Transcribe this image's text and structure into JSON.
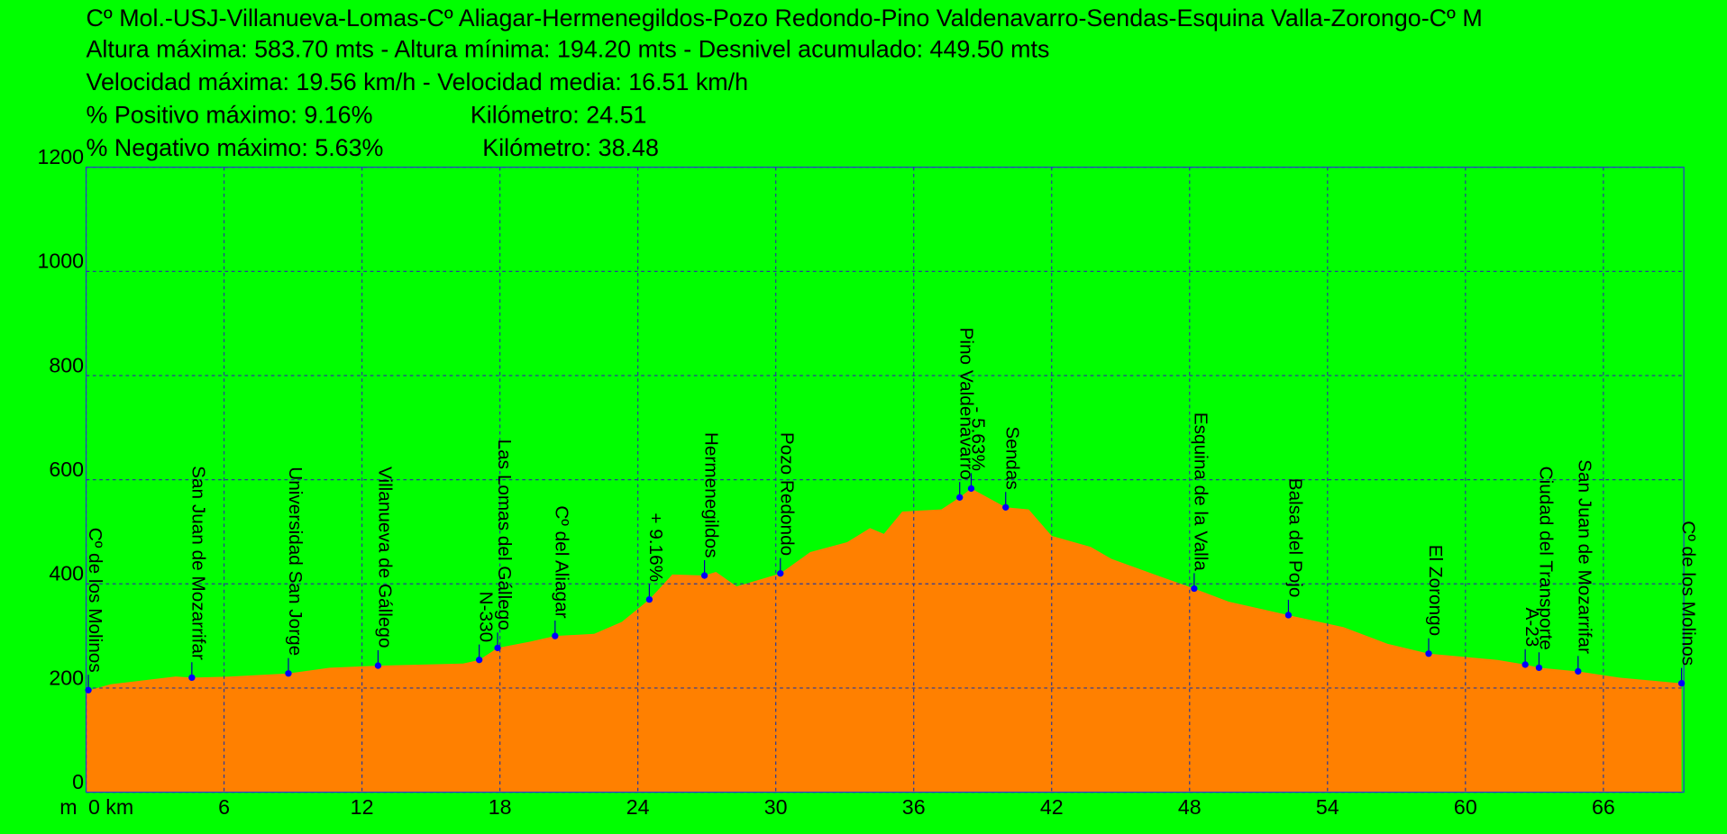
{
  "chart_data": {
    "type": "area",
    "title_lines": [
      "Cº Mol.-USJ-Villanueva-Lomas-Cº Aliagar-Hermenegildos-Pozo Redondo-Pino Valdenavarro-Sendas-Esquina Valla-Zorongo-Cº M",
      "Altura máxima: 583.70 mts - Altura mínima: 194.20 mts - Desnivel acumulado: 449.50 mts",
      "Velocidad máxima: 19.56 km/h - Velocidad media: 16.51 km/h",
      "% Positivo máximo: 9.16%",
      "% Negativo máximo: 5.63%"
    ],
    "km_notes": [
      "Kilómetro: 24.51",
      "Kilómetro: 38.48"
    ],
    "y_unit": "m",
    "x": [
      0,
      1.05,
      3.9,
      4.6,
      6.3,
      8.8,
      10.6,
      12.7,
      16.4,
      17.1,
      17.9,
      19.3,
      20.4,
      22.1,
      23.3,
      24.5,
      25.5,
      26.9,
      27.4,
      28.3,
      30.2,
      31.5,
      33.1,
      34.1,
      34.7,
      35.5,
      37.2,
      38.0,
      38.5,
      40.0,
      41.0,
      42.0,
      43.7,
      44.6,
      46.6,
      48.2,
      49.7,
      52.3,
      54.7,
      56.6,
      58.4,
      61.4,
      62.6,
      63.2,
      64.9,
      66.7,
      69.4
    ],
    "values": [
      194,
      207,
      222,
      220,
      222,
      228,
      239,
      243,
      247,
      254,
      277,
      289,
      300,
      304,
      327,
      370,
      418,
      416,
      423,
      395,
      420,
      461,
      480,
      507,
      496,
      539,
      543,
      566,
      583,
      547,
      543,
      492,
      471,
      448,
      416,
      391,
      366,
      340,
      317,
      285,
      266,
      254,
      245,
      239,
      232,
      220,
      209
    ],
    "color": "#ff8000",
    "xlim": [
      0,
      69.5
    ],
    "ylim": [
      0,
      1200
    ],
    "xticks": [
      {
        "value": 0,
        "label": "0 km"
      },
      6,
      12,
      18,
      24,
      30,
      36,
      42,
      48,
      54,
      60,
      66
    ],
    "yticks": [
      0,
      200,
      400,
      600,
      800,
      1000,
      1200
    ],
    "grid": true,
    "waypoints": {
      "color": "#0000ff",
      "names": [
        "Cº de los Molinos",
        "San Juan de Mozarrifar",
        "Universidad San Jorge",
        "Villanueva de Gállego",
        "N-330",
        "Las Lomas del Gállego",
        "Cº del Aliagar",
        "+ 9.16%",
        "Hermenegildos",
        "Pozo Redondo",
        "Pino Valdenavarro",
        "- 5.63%",
        "Sendas",
        "Esquina de la Valla",
        "Balsa del Pojo",
        "El Zorongo",
        "A-23",
        "Ciudad del Transporte",
        "San Juan de Mozarrifar",
        "Cº de los Molinos"
      ],
      "x": [
        0.1,
        4.6,
        8.8,
        12.7,
        17.1,
        17.9,
        20.4,
        24.5,
        26.9,
        30.2,
        38.0,
        38.5,
        40.0,
        48.2,
        52.3,
        58.4,
        62.6,
        63.2,
        64.9,
        69.4
      ],
      "values": [
        196,
        220,
        228,
        243,
        254,
        277,
        300,
        370,
        416,
        420,
        566,
        583,
        547,
        391,
        340,
        266,
        245,
        239,
        232,
        209
      ]
    }
  }
}
